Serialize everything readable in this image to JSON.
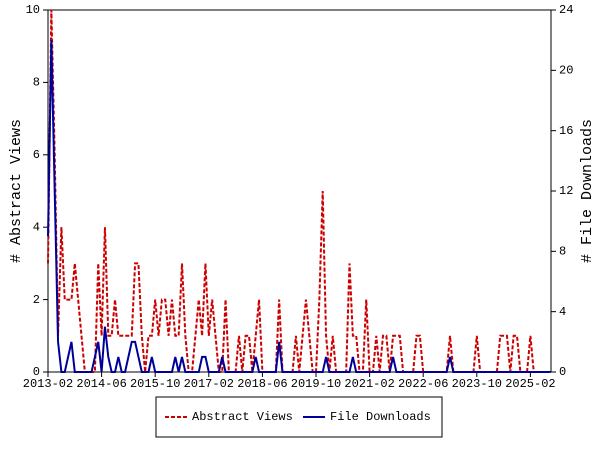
{
  "chart_data": {
    "type": "line",
    "categories": [
      "2013-02",
      null,
      null,
      null,
      null,
      null,
      null,
      null,
      null,
      null,
      null,
      null,
      null,
      null,
      null,
      null,
      "2014-06",
      null,
      null,
      null,
      null,
      null,
      null,
      null,
      null,
      null,
      null,
      null,
      null,
      null,
      null,
      null,
      "2015-10",
      null,
      null,
      null,
      null,
      null,
      null,
      null,
      null,
      null,
      null,
      null,
      null,
      null,
      null,
      null,
      "2017-02",
      null,
      null,
      null,
      null,
      null,
      null,
      null,
      null,
      null,
      null,
      null,
      null,
      null,
      null,
      null,
      "2018-06",
      null,
      null,
      null,
      null,
      null,
      null,
      null,
      null,
      null,
      null,
      null,
      null,
      null,
      null,
      null,
      "2019-10",
      null,
      null,
      null,
      null,
      null,
      null,
      null,
      null,
      null,
      null,
      null,
      null,
      null,
      null,
      null,
      "2021-02",
      null,
      null,
      null,
      null,
      null,
      null,
      null,
      null,
      null,
      null,
      null,
      null,
      null,
      null,
      null,
      "2022-06",
      null,
      null,
      null,
      null,
      null,
      null,
      null,
      null,
      null,
      null,
      null,
      null,
      null,
      null,
      null,
      "2023-10",
      null,
      null,
      null,
      null,
      null,
      null,
      null,
      null,
      null,
      null,
      null,
      null,
      null,
      null,
      null,
      "2025-02",
      null,
      null,
      null,
      null,
      null,
      null
    ],
    "series": [
      {
        "name": "Abstract Views",
        "color": "#cc0000",
        "dashed": true,
        "values": [
          3,
          10,
          6,
          1,
          4,
          2,
          2,
          2,
          3,
          2,
          1,
          0,
          0,
          0,
          0,
          3,
          1,
          4,
          1,
          1,
          2,
          1,
          1,
          1,
          1,
          1,
          3,
          3,
          1,
          0,
          1,
          1,
          2,
          1,
          2,
          2,
          1,
          2,
          1,
          1,
          3,
          1,
          0,
          0,
          1,
          2,
          1,
          3,
          1,
          2,
          1,
          0,
          0,
          2,
          0,
          0,
          0,
          1,
          0,
          1,
          1,
          0,
          1,
          2,
          0,
          0,
          0,
          0,
          0,
          2,
          0,
          0,
          0,
          0,
          1,
          0,
          1,
          2,
          1,
          0,
          0,
          2,
          5,
          1,
          0,
          1,
          0,
          0,
          0,
          0,
          3,
          1,
          1,
          0,
          0,
          2,
          0,
          0,
          1,
          0,
          1,
          1,
          0,
          1,
          1,
          1,
          0,
          0,
          0,
          0,
          1,
          1,
          0,
          0,
          0,
          0,
          0,
          0,
          0,
          0,
          1,
          0,
          0,
          0,
          0,
          0,
          0,
          0,
          1,
          0,
          0,
          0,
          0,
          0,
          0,
          1,
          1,
          1,
          0,
          1,
          1,
          0,
          0,
          0,
          1,
          0,
          0,
          0,
          0,
          0,
          0
        ]
      },
      {
        "name": "File Downloads",
        "color": "#000099",
        "axis": "y2",
        "dashed": false,
        "values": [
          9,
          22,
          12,
          2,
          0,
          0,
          1,
          2,
          0,
          0,
          0,
          0,
          0,
          0,
          1,
          2,
          0,
          3,
          1,
          0,
          0,
          1,
          0,
          0,
          1,
          2,
          2,
          1,
          0,
          0,
          0,
          1,
          0,
          0,
          0,
          0,
          0,
          0,
          1,
          0,
          1,
          0,
          0,
          0,
          0,
          0,
          1,
          1,
          0,
          0,
          0,
          0,
          1,
          0,
          0,
          0,
          0,
          0,
          0,
          0,
          0,
          0,
          1,
          0,
          0,
          0,
          0,
          0,
          0,
          2,
          0,
          0,
          0,
          0,
          0,
          0,
          0,
          0,
          0,
          0,
          0,
          0,
          0,
          1,
          0,
          0,
          0,
          0,
          0,
          0,
          0,
          1,
          0,
          0,
          0,
          0,
          0,
          0,
          0,
          0,
          0,
          0,
          0,
          1,
          0,
          0,
          0,
          0,
          0,
          0,
          0,
          0,
          0,
          0,
          0,
          0,
          0,
          0,
          0,
          0,
          1,
          0,
          0,
          0,
          0,
          0,
          0,
          0,
          0,
          0,
          0,
          0,
          0,
          0,
          0,
          0,
          0,
          0,
          0,
          0,
          0,
          0,
          0,
          0,
          0,
          0,
          0,
          0,
          0,
          0,
          0
        ]
      }
    ],
    "ylabel": "# Abstract Views",
    "y2label": "# File Downloads",
    "ylim": [
      0,
      10
    ],
    "yticks": [
      0,
      2,
      4,
      6,
      8,
      10
    ],
    "y2lim": [
      0,
      24
    ],
    "y2ticks": [
      0,
      4,
      8,
      12,
      16,
      20,
      24
    ],
    "legend": "bottom"
  }
}
